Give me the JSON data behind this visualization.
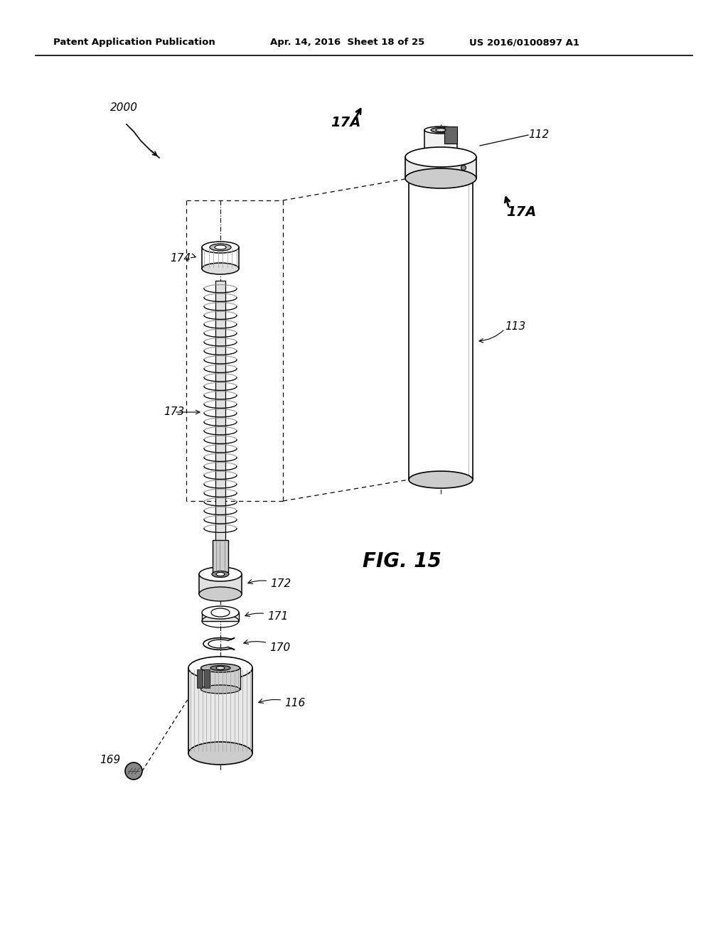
{
  "background_color": "#ffffff",
  "header_left": "Patent Application Publication",
  "header_center": "Apr. 14, 2016  Sheet 18 of 25",
  "header_right": "US 2016/0100897 A1",
  "figure_label": "FIG. 15"
}
